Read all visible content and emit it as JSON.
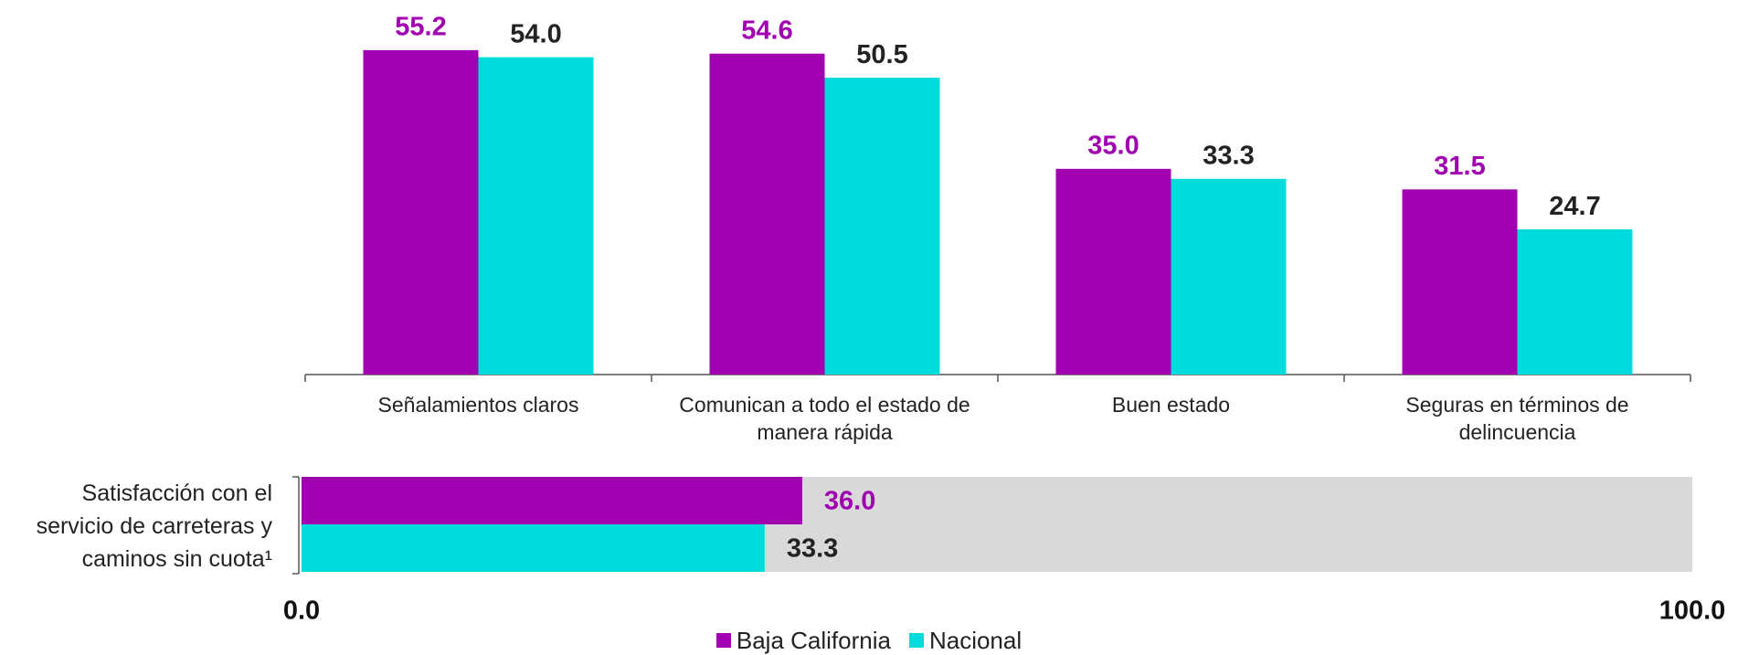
{
  "chart_data": [
    {
      "type": "bar",
      "categories": [
        "Señalamientos claros",
        "Comunican a todo el estado de manera rápida",
        "Buen estado",
        "Seguras en términos de delincuencia"
      ],
      "series": [
        {
          "name": "Baja California",
          "color": "#a000b0",
          "values": [
            55.2,
            54.6,
            35,
            31.5
          ],
          "value_labels": [
            "55.2",
            "54.6",
            "35.0",
            "31.5"
          ]
        },
        {
          "name": "Nacional",
          "color": "#00dcdc",
          "values": [
            54,
            50.5,
            33.3,
            24.7
          ],
          "value_labels": [
            "54.0",
            "50.5",
            "33.3",
            "24.7"
          ]
        }
      ],
      "ylim": [
        0,
        60
      ],
      "legend": "bottom"
    },
    {
      "type": "barh",
      "categories": [
        "Satisfacción con el servicio de carreteras y caminos sin cuota¹"
      ],
      "series": [
        {
          "color": "#a000b0",
          "values": [
            36
          ],
          "value_labels": [
            "36.0"
          ]
        },
        {
          "color": "#00dcdc",
          "values": [
            33.3
          ],
          "value_labels": [
            "33.3"
          ]
        }
      ],
      "xlim": [
        0,
        100
      ],
      "xticks": [
        {
          "value": 0,
          "label": "0.0"
        },
        {
          "value": 100,
          "label": "100.0"
        }
      ],
      "background": "#d9d9d9"
    }
  ]
}
